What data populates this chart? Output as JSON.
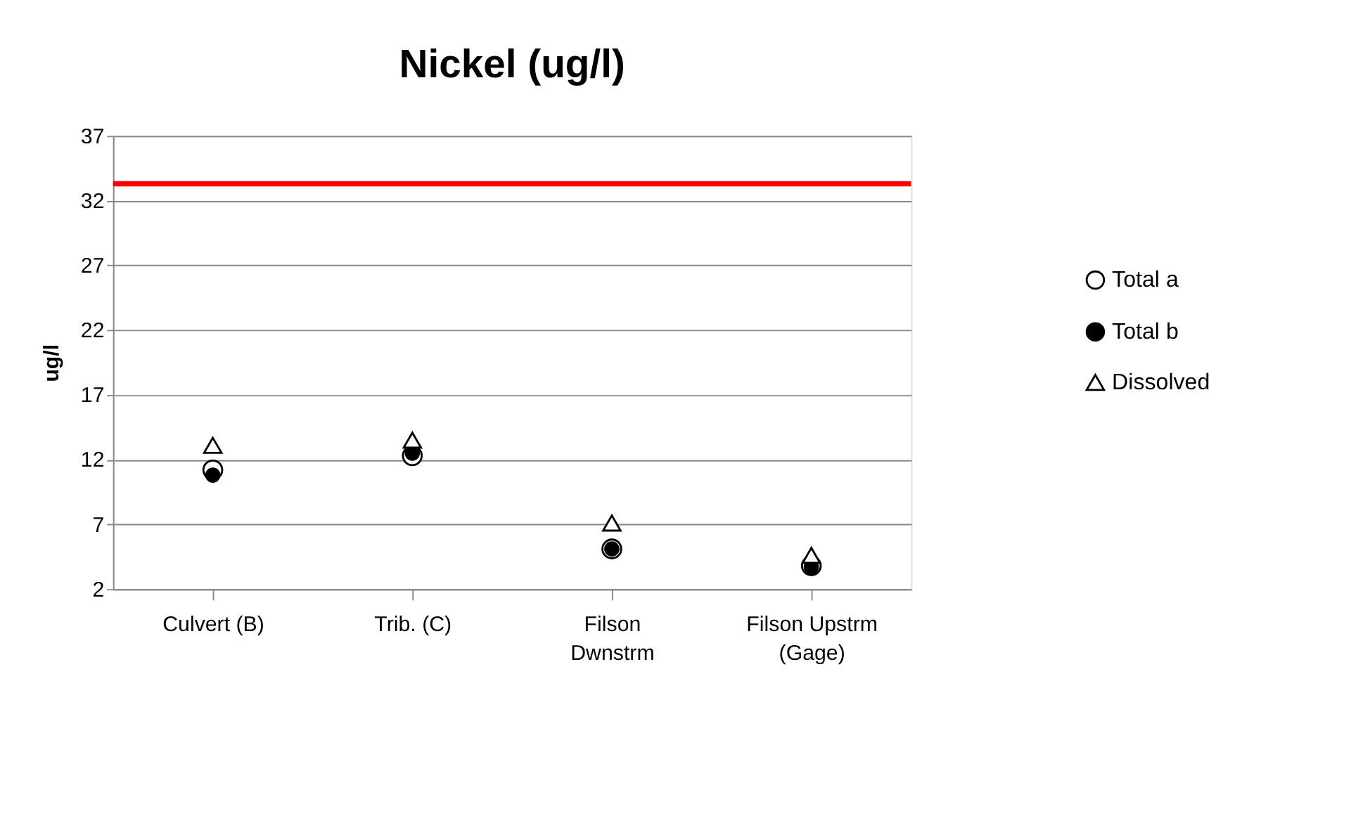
{
  "chart_data": {
    "type": "scatter",
    "title": "Nickel (ug/l)",
    "ylabel": "ug/l",
    "categories": [
      "Culvert (B)",
      "Trib. (C)",
      "Filson\nDwnstrm",
      "Filson Upstrm\n(Gage)"
    ],
    "series": [
      {
        "name": "Total a",
        "color": "#ffffff",
        "marker": "circle",
        "values": [
          11.2,
          12.3,
          5.1,
          3.8
        ]
      },
      {
        "name": "Total b",
        "color": "#000000",
        "marker": "circle",
        "values": [
          10.8,
          12.5,
          5.1,
          3.7
        ]
      },
      {
        "name": "Dissolved",
        "color": "#ffffff",
        "marker": "triangle",
        "values": [
          13.1,
          13.5,
          7.1,
          4.6
        ]
      }
    ],
    "ylim": [
      2,
      37
    ],
    "yticks": [
      2,
      7,
      12,
      17,
      22,
      27,
      32,
      37
    ],
    "grid": "y",
    "legend": "right",
    "ref_lines": [
      {
        "axis": "y",
        "value": 33.3,
        "color": "#ff0000"
      }
    ]
  }
}
